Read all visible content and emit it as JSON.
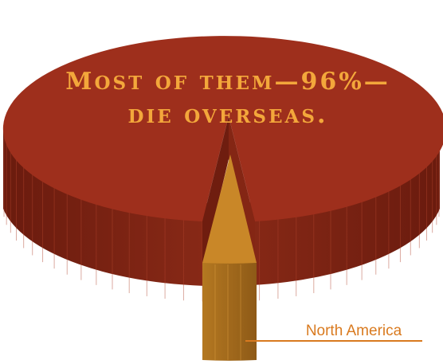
{
  "chart_data": {
    "type": "pie",
    "title_line1": "Most of them—96%—",
    "title_line2": "die overseas.",
    "slices": [
      {
        "name": "",
        "value": 96,
        "color": "#9e2f1c"
      },
      {
        "name": "North America",
        "value": 4,
        "color": "#c98728"
      }
    ],
    "exploded_slice": "North America",
    "colors": {
      "main_top": "#9e2f1c",
      "main_side": "#7e2212",
      "main_side_dark": "#651a0d",
      "slice_top": "#c98728",
      "slice_side": "#a86b1d",
      "callout": "#d97a1f",
      "headline": "#f3a73b"
    }
  }
}
